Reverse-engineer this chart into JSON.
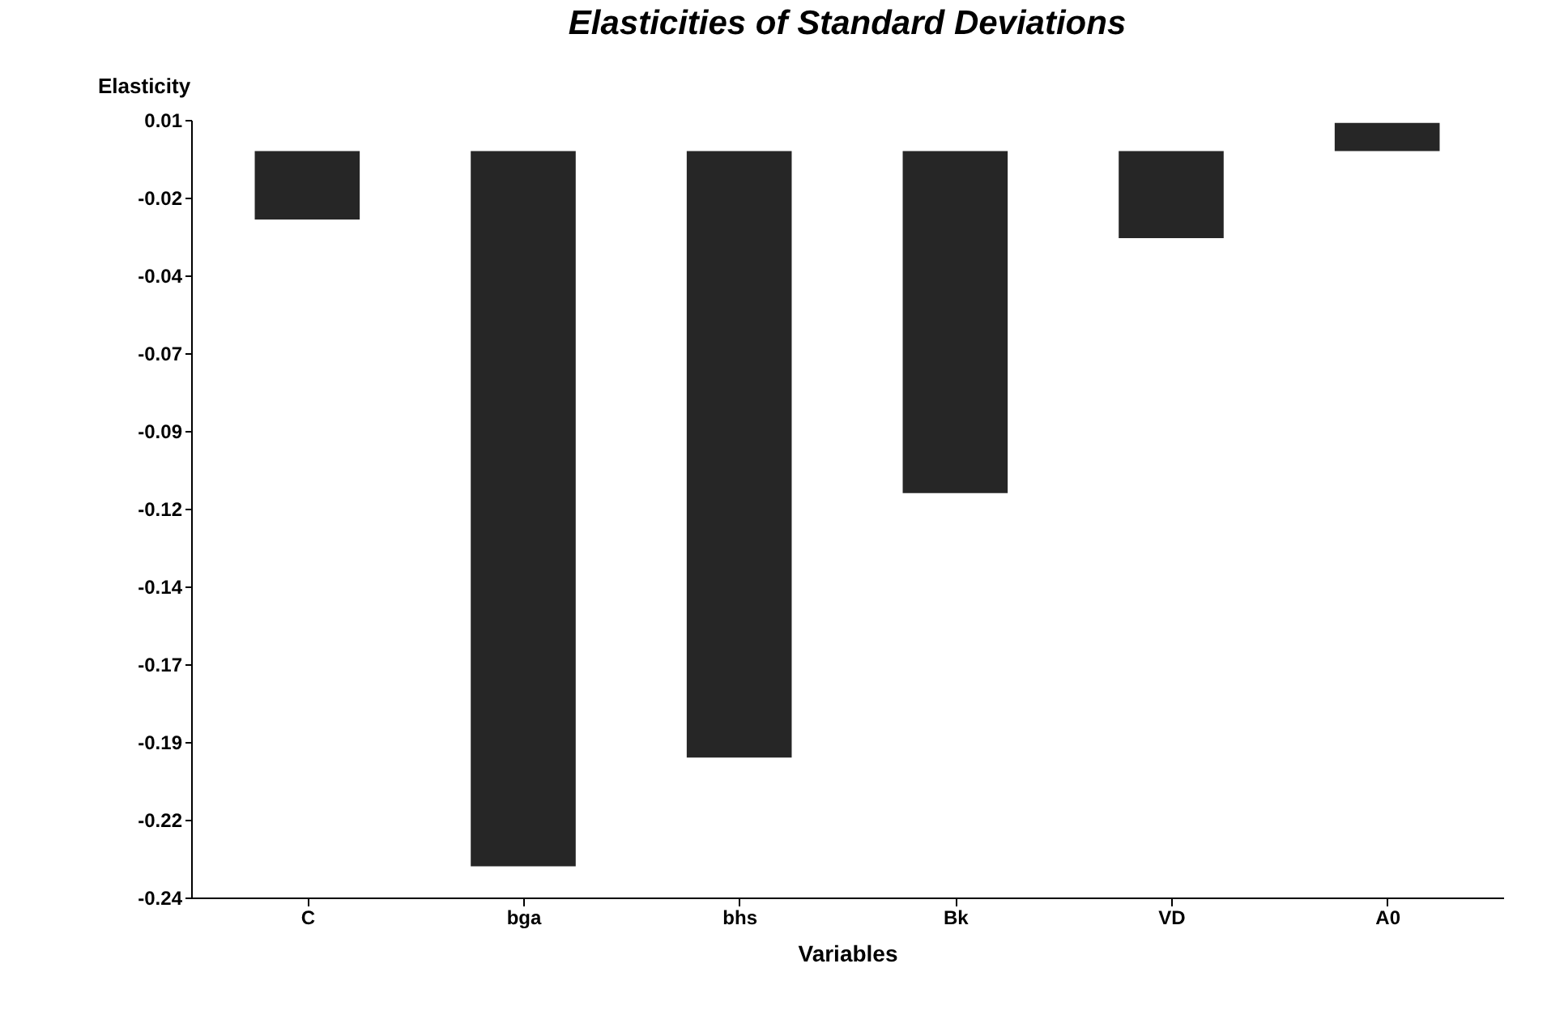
{
  "chart_data": {
    "type": "bar",
    "title": "Elasticities of Standard Deviations",
    "xlabel": "Variables",
    "ylabel": "Elasticity",
    "categories": [
      "C",
      "bga",
      "bhs",
      "Bk",
      "VD",
      "A0"
    ],
    "series": [
      {
        "color": "#262626",
        "values": [
          -0.022,
          -0.23,
          -0.195,
          -0.11,
          -0.028,
          0.009
        ]
      }
    ],
    "ylim": [
      -0.24,
      0.01
    ],
    "yticks": [
      0.01,
      {
        "value": -0.015,
        "label": "-0.02"
      },
      -0.04,
      {
        "value": -0.065,
        "label": "-0.07"
      },
      -0.09,
      {
        "value": -0.115,
        "label": "-0.12"
      },
      -0.14,
      {
        "value": -0.165,
        "label": "-0.17"
      },
      -0.19,
      {
        "value": -0.215,
        "label": "-0.22"
      },
      -0.24
    ],
    "grid": false
  }
}
